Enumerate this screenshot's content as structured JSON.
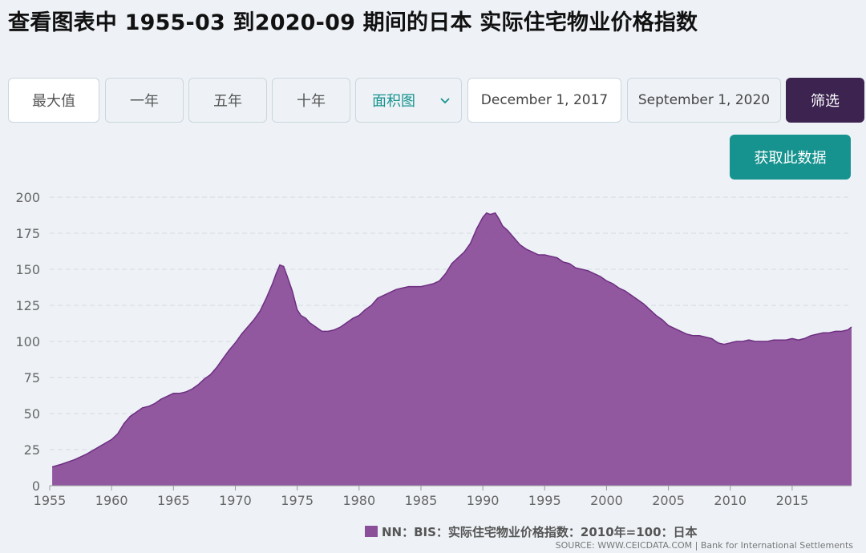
{
  "header": {
    "title": "查看图表中 1955-03 到2020-09 期间的日本 实际住宅物业价格指数"
  },
  "controls": {
    "max_label": "最大值",
    "one_year_label": "一年",
    "five_year_label": "五年",
    "ten_year_label": "十年",
    "chart_type_label": "面积图",
    "start_date": "December 1, 2017",
    "end_date": "September 1, 2020",
    "filter_label": "筛选",
    "get_data_label": "获取此数据"
  },
  "legend": {
    "label": "NN：BIS：实际住宅物业价格指数：2010年=100：日本"
  },
  "source": {
    "text": "SOURCE: WWW.CEICDATA.COM | Bank for International Settlements"
  },
  "colors": {
    "area_fill": "#8b4f9a",
    "area_stroke": "#6e2f82",
    "filter_button": "#3c2350",
    "accent": "#16938f"
  },
  "icons": {
    "chart_type_dropdown": "chevron-down-icon"
  },
  "chart_data": {
    "type": "area",
    "title": "",
    "xlabel": "",
    "ylabel": "",
    "xlim": [
      1955,
      2019.8
    ],
    "ylim": [
      0,
      200
    ],
    "y_ticks": [
      0,
      25,
      50,
      75,
      100,
      125,
      150,
      175,
      200
    ],
    "x_ticks": [
      1955,
      1960,
      1965,
      1970,
      1975,
      1980,
      1985,
      1990,
      1995,
      2000,
      2005,
      2010,
      2015
    ],
    "grid": true,
    "legend_position": "bottom",
    "series": [
      {
        "name": "NN：BIS：实际住宅物业价格指数：2010年=100：日本",
        "x": [
          1955.2,
          1956,
          1957,
          1958,
          1959,
          1960,
          1960.5,
          1961,
          1961.5,
          1962,
          1962.5,
          1963,
          1963.5,
          1964,
          1964.5,
          1965,
          1965.5,
          1966,
          1966.5,
          1967,
          1967.5,
          1968,
          1968.5,
          1969,
          1969.5,
          1970,
          1970.5,
          1971,
          1971.5,
          1972,
          1972.5,
          1973,
          1973.3,
          1973.6,
          1973.9,
          1974.2,
          1974.6,
          1975,
          1975.3,
          1975.7,
          1976,
          1976.5,
          1977,
          1977.5,
          1978,
          1978.5,
          1979,
          1979.5,
          1980,
          1980.5,
          1981,
          1981.5,
          1982,
          1982.5,
          1983,
          1983.5,
          1984,
          1984.5,
          1985,
          1985.5,
          1986,
          1986.5,
          1987,
          1987.5,
          1988,
          1988.5,
          1989,
          1989.5,
          1990,
          1990.3,
          1990.6,
          1991,
          1991.3,
          1991.6,
          1992,
          1992.5,
          1993,
          1993.5,
          1994,
          1994.5,
          1995,
          1995.5,
          1996,
          1996.5,
          1997,
          1997.5,
          1998,
          1998.5,
          1999,
          1999.5,
          2000,
          2000.5,
          2001,
          2001.5,
          2002,
          2002.5,
          2003,
          2003.5,
          2004,
          2004.5,
          2005,
          2005.5,
          2006,
          2006.5,
          2007,
          2007.5,
          2008,
          2008.5,
          2009,
          2009.5,
          2010,
          2010.5,
          2011,
          2011.5,
          2012,
          2012.5,
          2013,
          2013.5,
          2014,
          2014.5,
          2015,
          2015.5,
          2016,
          2016.5,
          2017,
          2017.5,
          2018,
          2018.5,
          2019,
          2019.5,
          2019.8
        ],
        "y": [
          13,
          15,
          18,
          22,
          27,
          32,
          36,
          43,
          48,
          51,
          54,
          55,
          57,
          60,
          62,
          64,
          64,
          65,
          67,
          70,
          74,
          77,
          82,
          88,
          94,
          99,
          105,
          110,
          115,
          121,
          130,
          140,
          147,
          153,
          152,
          145,
          135,
          122,
          118,
          116,
          113,
          110,
          107,
          107,
          108,
          110,
          113,
          116,
          118,
          122,
          125,
          130,
          132,
          134,
          136,
          137,
          138,
          138,
          138,
          139,
          140,
          142,
          147,
          154,
          158,
          162,
          168,
          178,
          186,
          189,
          188,
          189,
          185,
          180,
          177,
          172,
          167,
          164,
          162,
          160,
          160,
          159,
          158,
          155,
          154,
          151,
          150,
          149,
          147,
          145,
          142,
          140,
          137,
          135,
          132,
          129,
          126,
          122,
          118,
          115,
          111,
          109,
          107,
          105,
          104,
          104,
          103,
          102,
          99,
          98,
          99,
          100,
          100,
          101,
          100,
          100,
          100,
          101,
          101,
          101,
          102,
          101,
          102,
          104,
          105,
          106,
          106,
          107,
          107,
          108,
          110
        ]
      }
    ]
  }
}
